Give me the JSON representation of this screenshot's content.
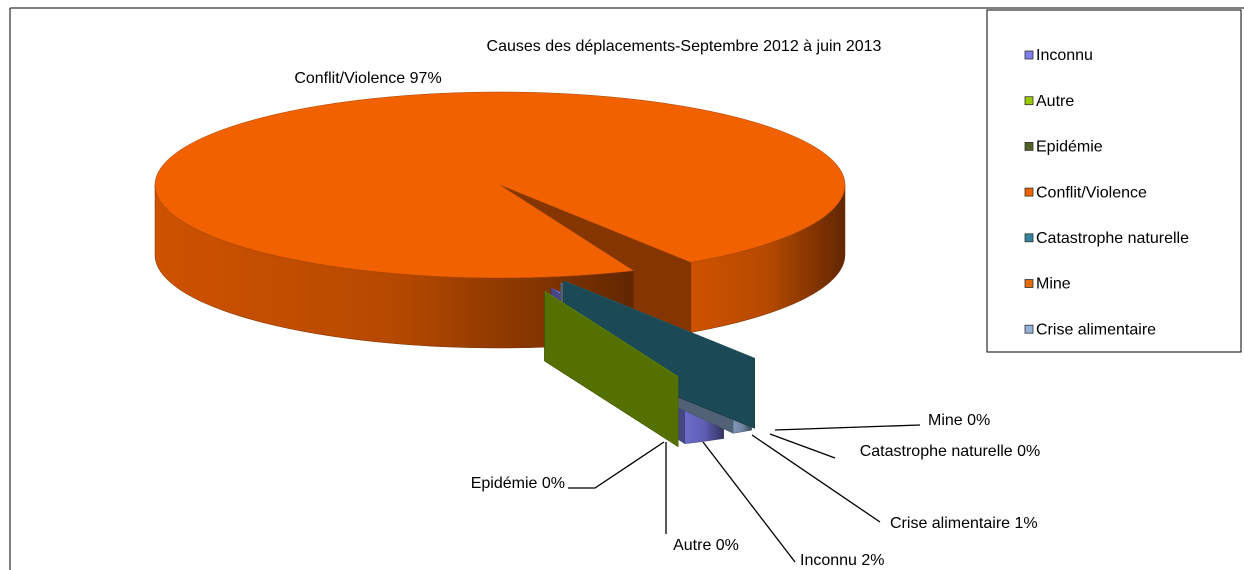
{
  "chart_data": {
    "type": "pie",
    "title": "Causes des déplacements-Septembre 2012 à juin 2013",
    "categories": [
      "Inconnu",
      "Autre",
      "Epidémie",
      "Conflit/Violence",
      "Catastrophe naturelle",
      "Mine",
      "Crise alimentaire"
    ],
    "values": [
      2,
      0,
      0,
      97,
      0,
      0,
      1
    ],
    "value_labels": [
      "Inconnu 2%",
      "Autre 0%",
      "Epidémie 0%",
      "Conflit/Violence 97%",
      "Catastrophe naturelle 0%",
      "Mine 0%",
      "Crise alimentaire 1%"
    ],
    "colors": [
      "#7f7ff0",
      "#99cc00",
      "#4f6228",
      "#f26100",
      "#31849b",
      "#e46c0a",
      "#95b3d7"
    ],
    "legend": "right"
  }
}
